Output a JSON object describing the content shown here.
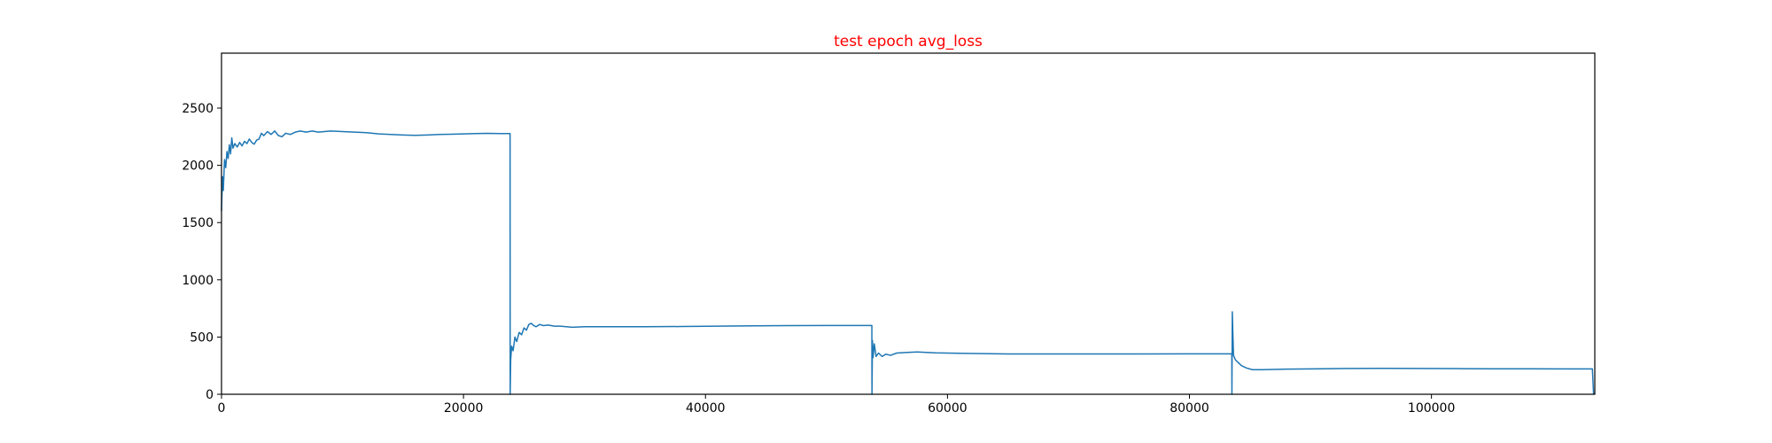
{
  "chart_data": {
    "type": "line",
    "title": "test epoch avg_loss",
    "title_color": "#ff0000",
    "xlabel": "",
    "ylabel": "",
    "xlim": [
      0,
      113500
    ],
    "ylim": [
      0,
      2980
    ],
    "x_ticks": [
      0,
      20000,
      40000,
      60000,
      80000,
      100000
    ],
    "x_tick_labels": [
      "0",
      "20000",
      "40000",
      "60000",
      "80000",
      "100000"
    ],
    "y_ticks": [
      0,
      500,
      1000,
      1500,
      2000,
      2500
    ],
    "y_tick_labels": [
      "0",
      "500",
      "1000",
      "1500",
      "2000",
      "2500"
    ],
    "grid": false,
    "series": [
      {
        "color": "#1f77b4",
        "points": [
          [
            0,
            1600
          ],
          [
            80,
            1900
          ],
          [
            150,
            1780
          ],
          [
            250,
            2050
          ],
          [
            350,
            1980
          ],
          [
            450,
            2120
          ],
          [
            550,
            2060
          ],
          [
            650,
            2180
          ],
          [
            750,
            2100
          ],
          [
            850,
            2240
          ],
          [
            950,
            2150
          ],
          [
            1100,
            2190
          ],
          [
            1300,
            2160
          ],
          [
            1500,
            2200
          ],
          [
            1700,
            2170
          ],
          [
            1900,
            2210
          ],
          [
            2100,
            2190
          ],
          [
            2300,
            2230
          ],
          [
            2500,
            2200
          ],
          [
            2700,
            2185
          ],
          [
            2900,
            2220
          ],
          [
            3100,
            2230
          ],
          [
            3300,
            2280
          ],
          [
            3500,
            2260
          ],
          [
            3800,
            2295
          ],
          [
            4100,
            2270
          ],
          [
            4400,
            2300
          ],
          [
            4700,
            2260
          ],
          [
            5000,
            2250
          ],
          [
            5300,
            2280
          ],
          [
            5700,
            2270
          ],
          [
            6100,
            2290
          ],
          [
            6500,
            2300
          ],
          [
            7000,
            2290
          ],
          [
            7500,
            2300
          ],
          [
            8000,
            2290
          ],
          [
            9000,
            2300
          ],
          [
            10000,
            2295
          ],
          [
            11000,
            2290
          ],
          [
            12000,
            2285
          ],
          [
            13000,
            2275
          ],
          [
            14000,
            2270
          ],
          [
            15000,
            2265
          ],
          [
            16000,
            2262
          ],
          [
            17000,
            2265
          ],
          [
            18000,
            2270
          ],
          [
            19000,
            2272
          ],
          [
            20000,
            2275
          ],
          [
            21000,
            2278
          ],
          [
            22000,
            2280
          ],
          [
            23000,
            2278
          ],
          [
            23850,
            2278
          ],
          [
            23860,
            0
          ],
          [
            23900,
            300
          ],
          [
            23980,
            420
          ],
          [
            24100,
            380
          ],
          [
            24250,
            500
          ],
          [
            24400,
            460
          ],
          [
            24600,
            540
          ],
          [
            24800,
            520
          ],
          [
            25000,
            580
          ],
          [
            25200,
            560
          ],
          [
            25400,
            610
          ],
          [
            25600,
            620
          ],
          [
            25800,
            600
          ],
          [
            26000,
            590
          ],
          [
            26300,
            610
          ],
          [
            26600,
            600
          ],
          [
            27000,
            605
          ],
          [
            27500,
            595
          ],
          [
            28000,
            595
          ],
          [
            29000,
            585
          ],
          [
            30000,
            590
          ],
          [
            32000,
            590
          ],
          [
            35000,
            590
          ],
          [
            38000,
            592
          ],
          [
            41000,
            595
          ],
          [
            44000,
            598
          ],
          [
            47000,
            600
          ],
          [
            50000,
            601
          ],
          [
            53000,
            601
          ],
          [
            53750,
            601
          ],
          [
            53760,
            0
          ],
          [
            53800,
            470
          ],
          [
            53850,
            320
          ],
          [
            53950,
            440
          ],
          [
            54100,
            330
          ],
          [
            54300,
            360
          ],
          [
            54600,
            330
          ],
          [
            54900,
            350
          ],
          [
            55300,
            340
          ],
          [
            55800,
            360
          ],
          [
            56500,
            365
          ],
          [
            57500,
            370
          ],
          [
            59000,
            362
          ],
          [
            61000,
            358
          ],
          [
            63000,
            355
          ],
          [
            65000,
            352
          ],
          [
            68000,
            352
          ],
          [
            72000,
            352
          ],
          [
            76000,
            352
          ],
          [
            80000,
            353
          ],
          [
            83500,
            353
          ],
          [
            83510,
            0
          ],
          [
            83540,
            720
          ],
          [
            83580,
            560
          ],
          [
            83640,
            340
          ],
          [
            83800,
            300
          ],
          [
            84000,
            280
          ],
          [
            84300,
            250
          ],
          [
            84700,
            230
          ],
          [
            85200,
            215
          ],
          [
            86000,
            215
          ],
          [
            88000,
            220
          ],
          [
            90000,
            222
          ],
          [
            93000,
            225
          ],
          [
            96000,
            226
          ],
          [
            99000,
            225
          ],
          [
            102000,
            224
          ],
          [
            105000,
            223
          ],
          [
            108000,
            223
          ],
          [
            111000,
            222
          ],
          [
            113300,
            222
          ],
          [
            113400,
            0
          ]
        ]
      }
    ]
  }
}
